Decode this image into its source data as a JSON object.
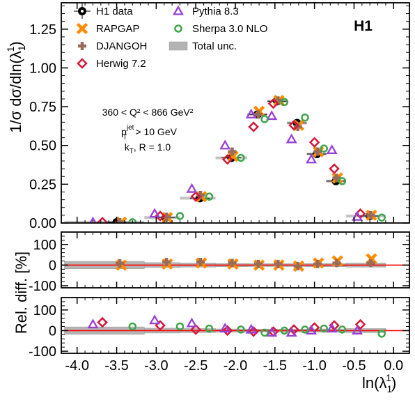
{
  "experiment_label": "H1",
  "annotation": {
    "line1": "360 < Q² < 866 GeV²",
    "line2_main": "p",
    "line2_sup": "jet",
    "line2_sub": "T",
    "line2_rest": " > 10 GeV",
    "line3_main": "k",
    "line3_sub": "T",
    "line3_rest": ", R = 1.0"
  },
  "axes": {
    "ylabel_top": "1/σ dσ/dln(λ",
    "ylabel_top_sub": "1",
    "ylabel_top_sup": "1",
    "ylabel_top_end": ")",
    "ylabel_ratio": "Rel. diff. [%]",
    "xlabel": "ln(λ",
    "xlabel_sub": "1",
    "xlabel_sup": "1",
    "xlabel_end": ")"
  },
  "colors": {
    "h1": "#000000",
    "rapgap": "#ff8c00",
    "djangoh": "#9b6b5a",
    "herwig": "#d6173a",
    "pythia": "#9a3fd6",
    "sherpa": "#3fa64a",
    "unc_band": "#b4b4b4",
    "ref_line": "#ff0000"
  },
  "chart_data": {
    "type": "scatter",
    "x_ticks": [
      "-4.0",
      "-3.5",
      "-3.0",
      "-2.5",
      "-2.0",
      "-1.5",
      "-1.0",
      "-0.5",
      "0.0"
    ],
    "x_tick_values": [
      -4.0,
      -3.5,
      -3.0,
      -2.5,
      -2.0,
      -1.5,
      -1.0,
      -0.5,
      0.0
    ],
    "xlim": [
      -4.2,
      0.2
    ],
    "panels": [
      {
        "id": "main",
        "ylim": [
          0,
          1.42
        ],
        "y_ticks": [
          "0.00",
          "0.25",
          "0.50",
          "0.75",
          "1.00",
          "1.25"
        ],
        "y_tick_values": [
          0,
          0.25,
          0.5,
          0.75,
          1.0,
          1.25
        ],
        "x_bins": [
          [
            -4.16,
            -3.15
          ],
          [
            -3.15,
            -2.7
          ],
          [
            -2.7,
            -2.25
          ],
          [
            -2.25,
            -1.85
          ],
          [
            -1.85,
            -1.6
          ],
          [
            -1.6,
            -1.35
          ],
          [
            -1.35,
            -1.1
          ],
          [
            -1.1,
            -0.85
          ],
          [
            -0.85,
            -0.6
          ],
          [
            -0.6,
            -0.1
          ]
        ],
        "series": [
          {
            "name": "H1 data",
            "marker": "circle-filled",
            "x": [
              -3.5,
              -2.88,
              -2.45,
              -2.05,
              -1.72,
              -1.47,
              -1.22,
              -0.97,
              -0.73,
              -0.3
            ],
            "y": [
              0.005,
              0.035,
              0.16,
              0.42,
              0.7,
              0.785,
              0.645,
              0.445,
              0.27,
              0.045
            ]
          },
          {
            "name": "RAPGAP",
            "marker": "x",
            "x": [
              -3.44,
              -2.86,
              -2.43,
              -2.03,
              -1.7,
              -1.45,
              -1.2,
              -0.95,
              -0.71,
              -0.28
            ],
            "y": [
              0.005,
              0.035,
              0.17,
              0.43,
              0.72,
              0.79,
              0.63,
              0.46,
              0.29,
              0.05
            ]
          },
          {
            "name": "DJANGOH",
            "marker": "plus",
            "x": [
              -3.46,
              -2.87,
              -2.44,
              -2.04,
              -1.71,
              -1.46,
              -1.21,
              -0.96,
              -0.72,
              -0.29
            ],
            "y": [
              0.005,
              0.04,
              0.18,
              0.46,
              0.7,
              0.79,
              0.62,
              0.46,
              0.29,
              0.05
            ]
          },
          {
            "name": "Herwig 7.2",
            "marker": "diamond",
            "x": [
              -3.68,
              -2.95,
              -2.5,
              -2.1,
              -1.77,
              -1.52,
              -1.26,
              -1.0,
              -0.75,
              -0.42
            ],
            "y": [
              0.005,
              0.045,
              0.17,
              0.41,
              0.62,
              0.77,
              0.63,
              0.52,
              0.35,
              0.06
            ]
          },
          {
            "name": "Pythia 8.3",
            "marker": "triangle",
            "x": [
              -3.8,
              -3.02,
              -2.55,
              -2.13,
              -1.8,
              -1.54,
              -1.29,
              -1.04,
              -0.78,
              -0.46
            ],
            "y": [
              0.005,
              0.06,
              0.22,
              0.5,
              0.7,
              0.69,
              0.54,
              0.41,
              0.47,
              0.04
            ]
          },
          {
            "name": "Sherpa 3.0 NLO",
            "marker": "circle-open",
            "x": [
              -3.3,
              -2.7,
              -2.33,
              -1.93,
              -1.63,
              -1.38,
              -1.12,
              -0.88,
              -0.65,
              -0.15
            ],
            "y": [
              0.005,
              0.045,
              0.17,
              0.42,
              0.67,
              0.78,
              0.68,
              0.48,
              0.27,
              0.035
            ]
          }
        ]
      },
      {
        "id": "ratio1",
        "ylim": [
          -110,
          160
        ],
        "y_ticks": [
          "100",
          "0",
          "-100"
        ],
        "y_tick_values": [
          100,
          0,
          -100
        ],
        "band_halfwidth": [
          18,
          12,
          10,
          8,
          7,
          7,
          7,
          8,
          8,
          10
        ],
        "series": [
          {
            "name": "RAPGAP",
            "marker": "x",
            "x": [
              -3.44,
              -2.86,
              -2.43,
              -2.03,
              -1.7,
              -1.45,
              -1.2,
              -0.95,
              -0.71,
              -0.28
            ],
            "y": [
              0,
              5,
              10,
              5,
              0,
              0,
              -5,
              10,
              20,
              30
            ]
          },
          {
            "name": "DJANGOH",
            "marker": "plus",
            "x": [
              -3.46,
              -2.87,
              -2.44,
              -2.04,
              -1.71,
              -1.46,
              -1.21,
              -0.96,
              -0.72,
              -0.29
            ],
            "y": [
              8,
              15,
              15,
              10,
              5,
              5,
              -5,
              5,
              10,
              10
            ]
          }
        ]
      },
      {
        "id": "ratio2",
        "ylim": [
          -110,
          160
        ],
        "y_ticks": [
          "100",
          "0",
          "-100"
        ],
        "y_tick_values": [
          100,
          0,
          -100
        ],
        "band_halfwidth": [
          18,
          12,
          10,
          8,
          7,
          7,
          7,
          8,
          8,
          10
        ],
        "series": [
          {
            "name": "Herwig 7.2",
            "marker": "diamond",
            "x": [
              -3.68,
              -2.95,
              -2.5,
              -2.1,
              -1.77,
              -1.52,
              -1.26,
              -1.0,
              -0.75,
              -0.42
            ],
            "y": [
              40,
              25,
              5,
              0,
              -5,
              -5,
              5,
              15,
              25,
              30
            ]
          },
          {
            "name": "Pythia 8.3",
            "marker": "triangle",
            "x": [
              -3.8,
              -3.02,
              -2.55,
              -2.13,
              -1.8,
              -1.54,
              -1.29,
              -1.04,
              -0.78,
              -0.46
            ],
            "y": [
              30,
              50,
              35,
              10,
              5,
              -10,
              -10,
              0,
              10,
              0
            ]
          },
          {
            "name": "Sherpa 3.0 NLO",
            "marker": "circle-open",
            "x": [
              -3.3,
              -2.7,
              -2.33,
              -1.93,
              -1.63,
              -1.38,
              -1.12,
              -0.88,
              -0.65,
              -0.15
            ],
            "y": [
              20,
              20,
              10,
              5,
              -10,
              0,
              5,
              10,
              5,
              -15
            ]
          }
        ]
      }
    ],
    "legend": {
      "placement": "top-left",
      "entries": [
        "H1 data",
        "RAPGAP",
        "DJANGOH",
        "Herwig 7.2",
        "Pythia 8.3",
        "Sherpa 3.0 NLO",
        "Total unc."
      ]
    },
    "grid": false
  }
}
